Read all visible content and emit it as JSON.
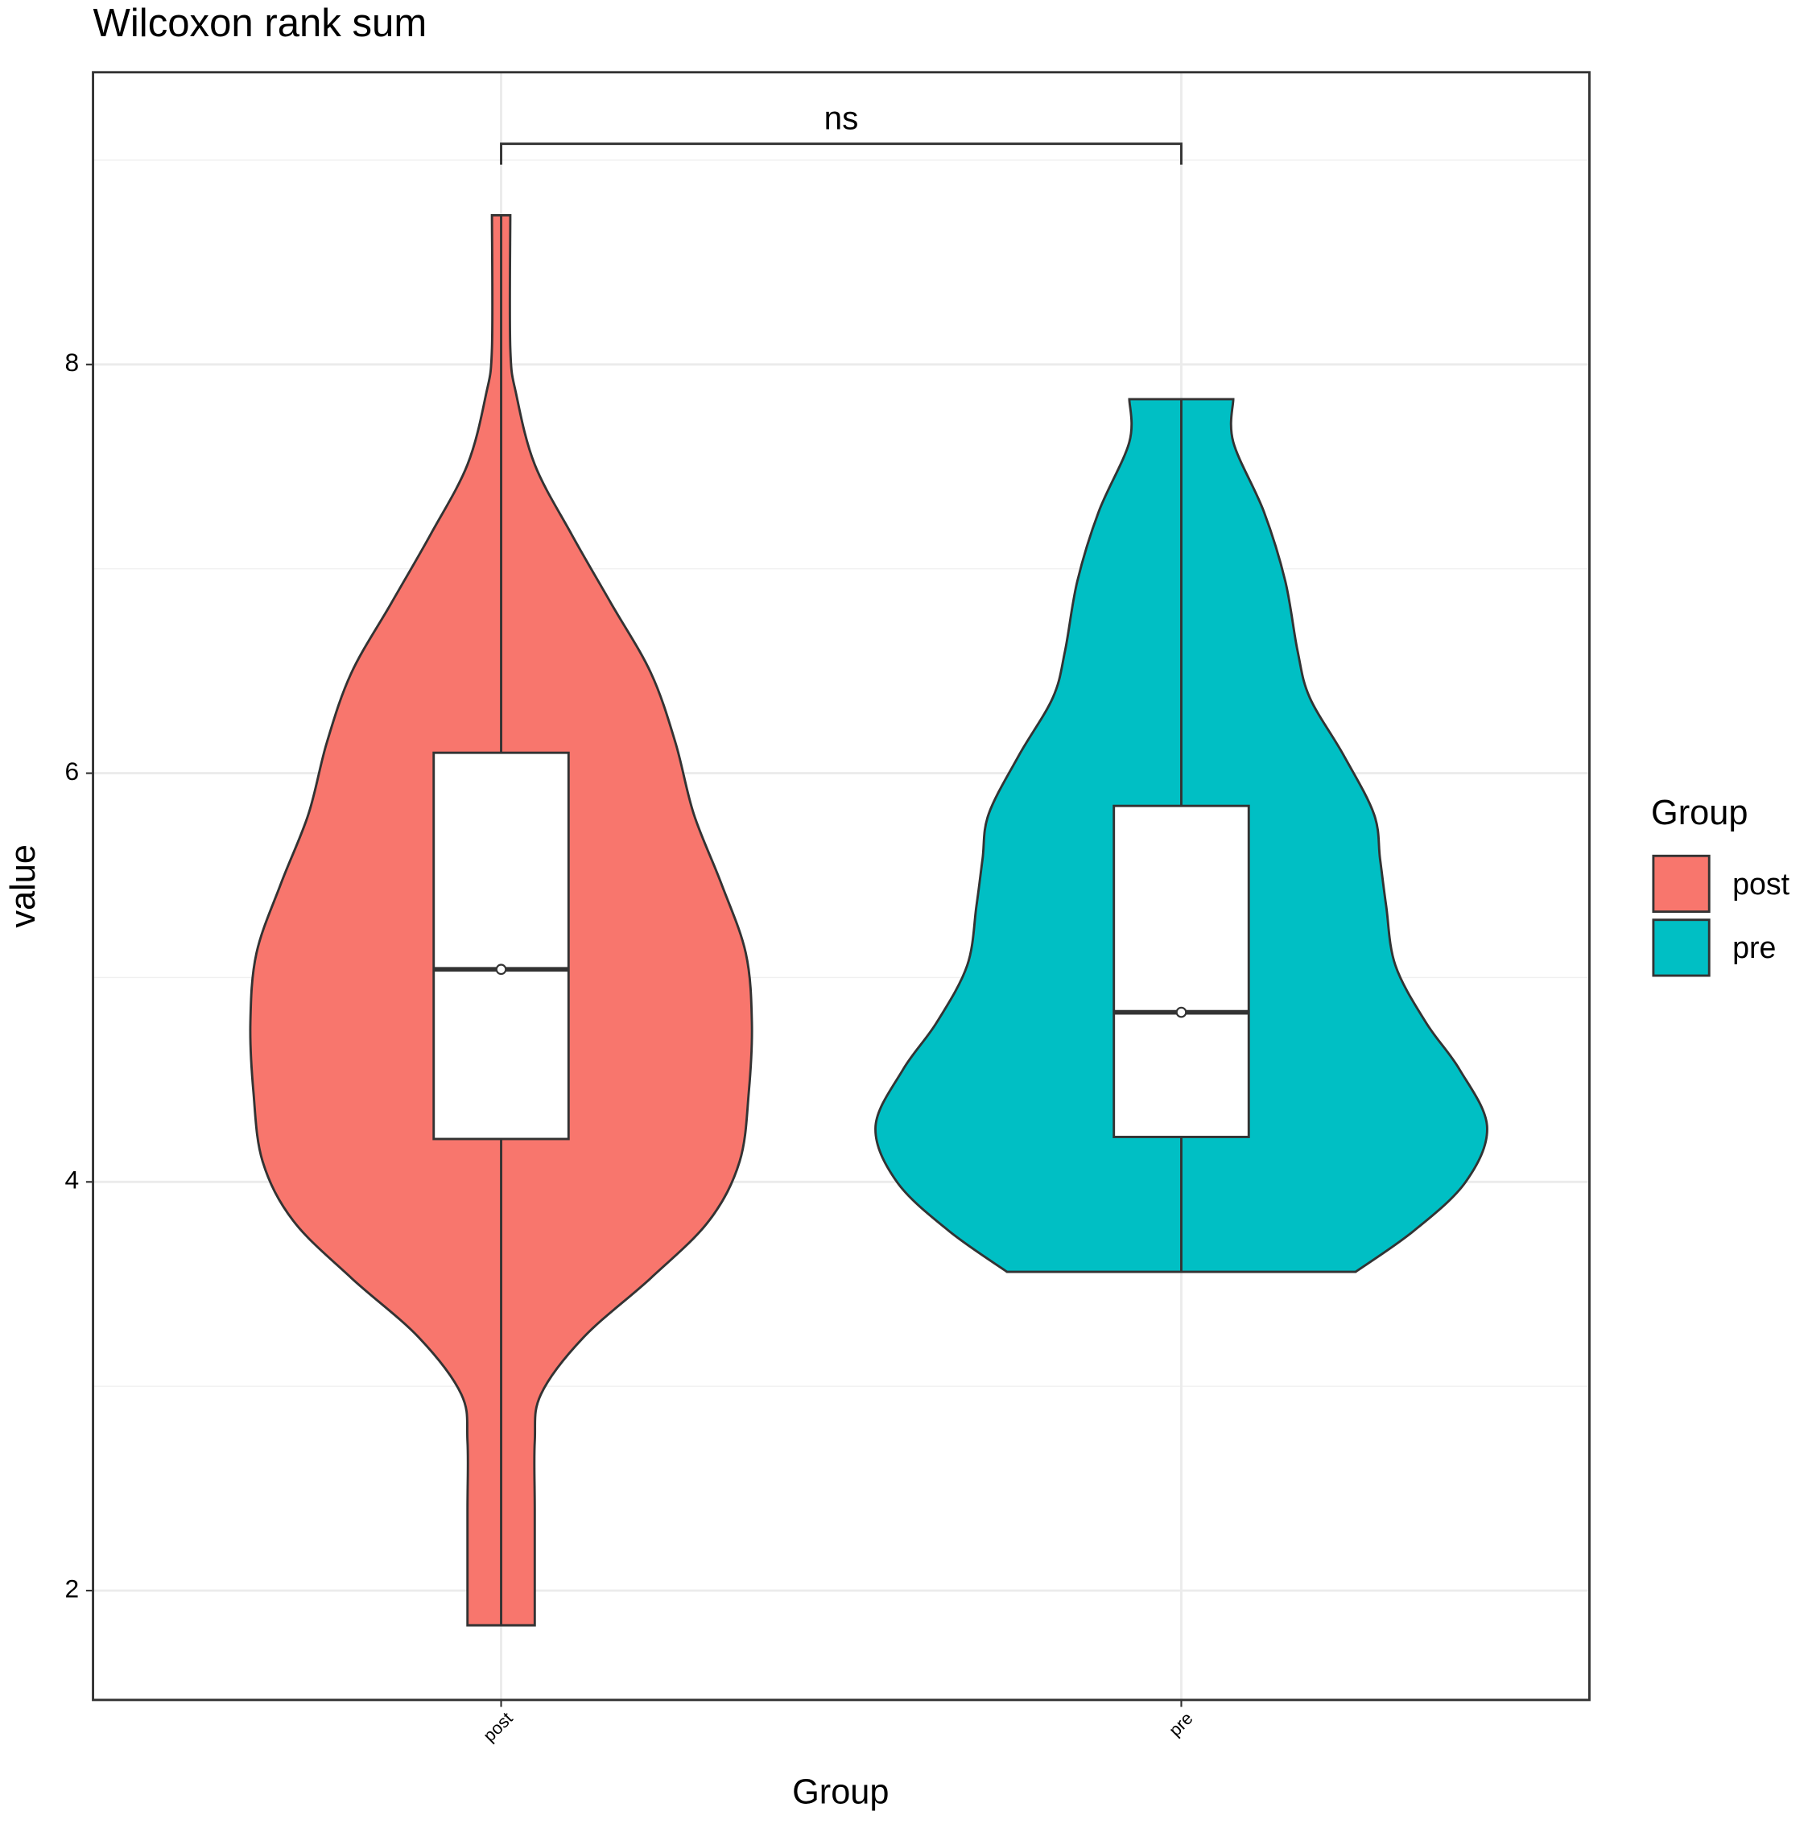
{
  "chart_data": {
    "type": "violin",
    "title": "Wilcoxon rank sum",
    "x_label": "Group",
    "y_label": "value",
    "categories": [
      "post",
      "pre"
    ],
    "series": [
      {
        "name": "post",
        "color": "#F8766D",
        "density": {
          "y": [
            1.83,
            2.39,
            2.73,
            2.96,
            3.24,
            3.53,
            3.81,
            4.1,
            4.44,
            4.78,
            5.12,
            5.46,
            5.8,
            6.15,
            6.49,
            6.83,
            7.17,
            7.51,
            7.85,
            8.08,
            8.73
          ],
          "width": [
            0.11,
            0.11,
            0.11,
            0.13,
            0.27,
            0.49,
            0.68,
            0.78,
            0.81,
            0.82,
            0.8,
            0.72,
            0.63,
            0.57,
            0.49,
            0.36,
            0.23,
            0.11,
            0.05,
            0.03,
            0.03
          ]
        },
        "box": {
          "whisker_low": 1.83,
          "q1": 4.21,
          "median": 5.04,
          "q3": 6.1,
          "whisker_high": 8.73,
          "mean": 5.04
        }
      },
      {
        "name": "pre",
        "color": "#00BFC4",
        "density": {
          "y": [
            3.56,
            3.76,
            4.0,
            4.27,
            4.55,
            4.78,
            5.06,
            5.35,
            5.58,
            5.8,
            6.09,
            6.37,
            6.6,
            6.94,
            7.28,
            7.62,
            7.83
          ],
          "width": [
            0.57,
            0.76,
            0.93,
            1.0,
            0.91,
            0.8,
            0.7,
            0.67,
            0.65,
            0.63,
            0.53,
            0.42,
            0.38,
            0.34,
            0.27,
            0.17,
            0.17
          ]
        },
        "box": {
          "whisker_low": 3.56,
          "q1": 4.22,
          "median": 4.83,
          "q3": 5.84,
          "whisker_high": 7.83,
          "mean": 4.83
        }
      }
    ],
    "ylim": [
      1.465,
      9.43
    ],
    "yticks": [
      2,
      4,
      6,
      8
    ],
    "minor_yticks": [
      3,
      5,
      7,
      9
    ],
    "grid": true,
    "legend": {
      "title": "Group",
      "position": "right"
    },
    "annotation": {
      "text": "ns",
      "y": 9.08
    }
  }
}
